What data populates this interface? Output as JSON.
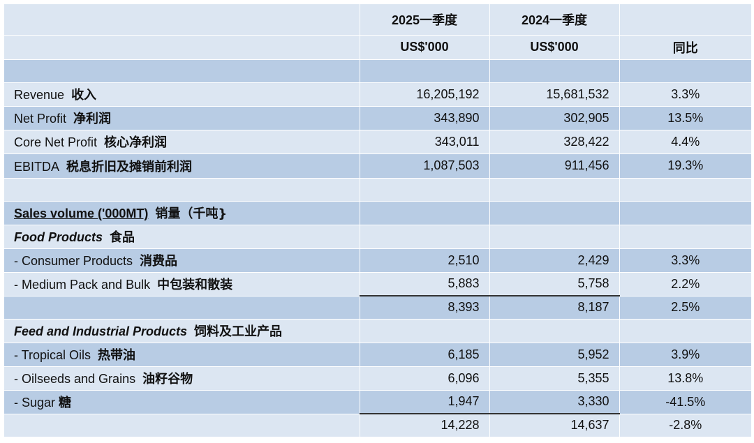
{
  "header": {
    "period_current": "2025一季度",
    "period_prior": "2024一季度",
    "unit_current": "US$'000",
    "unit_prior": "US$'000",
    "yoy": "同比"
  },
  "financials": [
    {
      "en": "Revenue",
      "zh": "收入",
      "current": "16,205,192",
      "prior": "15,681,532",
      "yoy": "3.3%"
    },
    {
      "en": "Net Profit",
      "zh": "净利润",
      "current": "343,890",
      "prior": "302,905",
      "yoy": "13.5%"
    },
    {
      "en": "Core Net Profit",
      "zh": "核心净利润",
      "current": "343,011",
      "prior": "328,422",
      "yoy": "4.4%"
    },
    {
      "en": "EBITDA",
      "zh": "税息折旧及摊销前利润",
      "current": "1,087,503",
      "prior": "911,456",
      "yoy": "19.3%"
    }
  ],
  "sales": {
    "title_en": "Sales volume ('000MT)",
    "title_zh": "销量（千吨}",
    "food": {
      "title_en": "Food Products",
      "title_zh": "食品",
      "rows": [
        {
          "en": "- Consumer Products",
          "zh": "消费品",
          "current": "2,510",
          "prior": "2,429",
          "yoy": "3.3%"
        },
        {
          "en": "- Medium Pack and Bulk",
          "zh": "中包装和散装",
          "current": "5,883",
          "prior": "5,758",
          "yoy": "2.2%"
        }
      ],
      "total": {
        "current": "8,393",
        "prior": "8,187",
        "yoy": "2.5%"
      }
    },
    "feed": {
      "title_en": "Feed and Industrial Products",
      "title_zh": "饲料及工业产品",
      "rows": [
        {
          "en": "- Tropical Oils",
          "zh": "热带油",
          "current": "6,185",
          "prior": "5,952",
          "yoy": "3.9%"
        },
        {
          "en": "- Oilseeds and Grains",
          "zh": "油籽谷物",
          "current": "6,096",
          "prior": "5,355",
          "yoy": "13.8%"
        },
        {
          "en": "- Sugar",
          "zh": "糖",
          "current": "1,947",
          "prior": "3,330",
          "yoy": "-41.5%"
        }
      ],
      "total": {
        "current": "14,228",
        "prior": "14,637",
        "yoy": "-2.8%"
      }
    }
  }
}
